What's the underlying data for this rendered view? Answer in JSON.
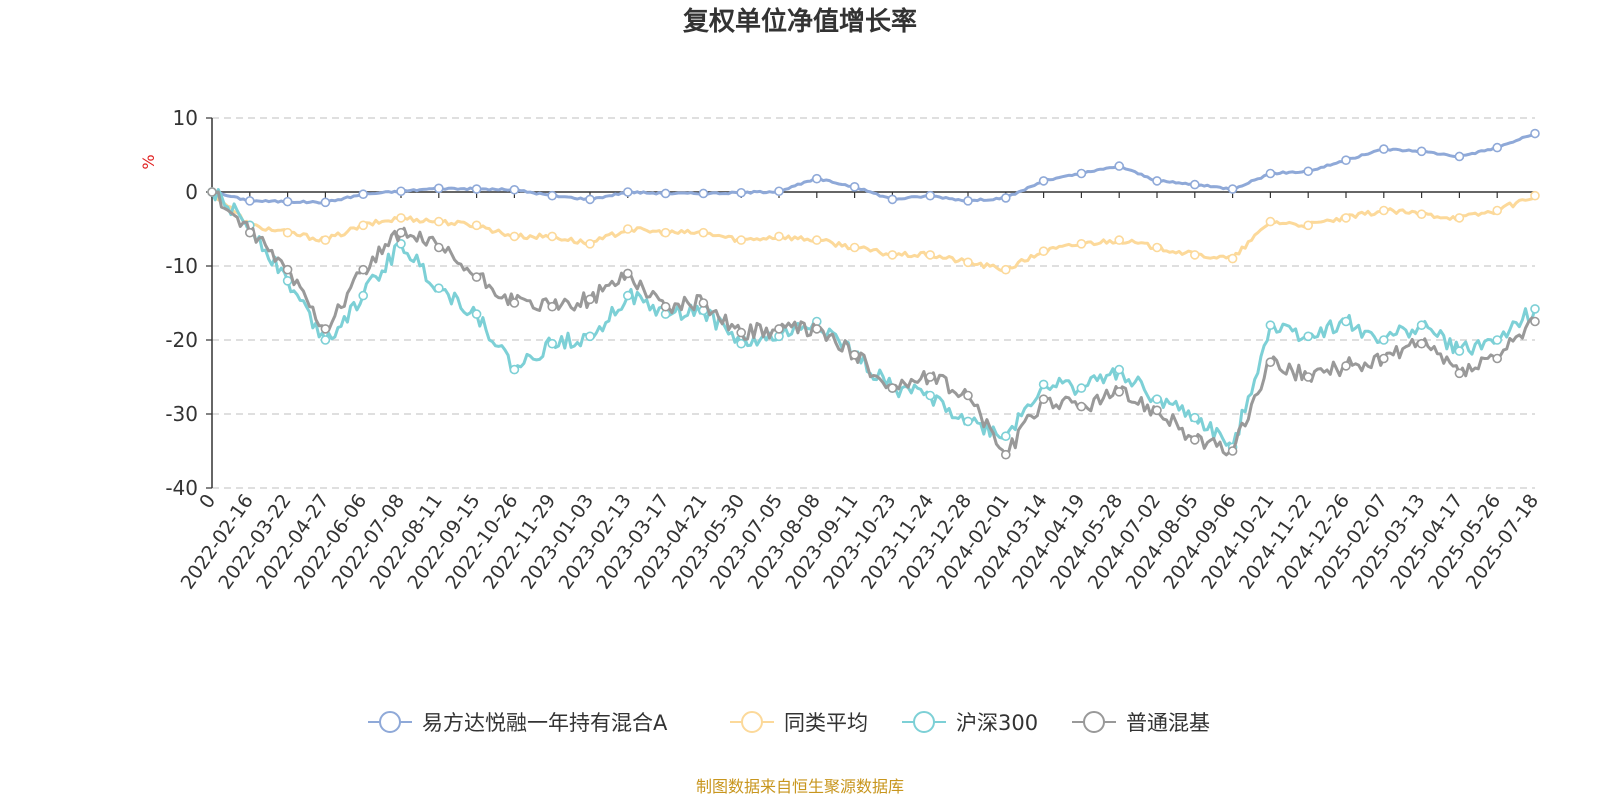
{
  "chart_data": {
    "type": "line",
    "title": "复权单位净值增长率",
    "ylabel": "%",
    "ylim": [
      -40,
      10
    ],
    "yticks": [
      10,
      0,
      -10,
      -20,
      -30,
      -40
    ],
    "grid": true,
    "legend_position": "bottom",
    "x_tick_labels": [
      "0",
      "2022-02-16",
      "2022-03-22",
      "2022-04-27",
      "2022-06-06",
      "2022-07-08",
      "2022-08-11",
      "2022-09-15",
      "2022-10-26",
      "2022-11-29",
      "2023-01-03",
      "2023-02-13",
      "2023-03-17",
      "2023-04-21",
      "2023-05-30",
      "2023-07-05",
      "2023-08-08",
      "2023-09-11",
      "2023-10-23",
      "2023-11-24",
      "2023-12-28",
      "2024-02-01",
      "2024-03-14",
      "2024-04-19",
      "2024-05-28",
      "2024-07-02",
      "2024-08-05",
      "2024-09-06",
      "2024-10-21",
      "2024-11-22",
      "2024-12-26",
      "2025-02-07",
      "2025-03-13",
      "2025-04-17",
      "2025-05-26",
      "2025-07-18"
    ],
    "series": [
      {
        "name": "易方达悦融一年持有混合A",
        "color": "#8fa9d8",
        "values": [
          0,
          -1.2,
          -1.3,
          -1.4,
          -0.3,
          0.1,
          0.5,
          0.4,
          0.3,
          -0.5,
          -1.0,
          0.0,
          -0.2,
          -0.2,
          -0.1,
          0.1,
          1.8,
          0.7,
          -1.0,
          -0.5,
          -1.2,
          -0.8,
          1.5,
          2.5,
          3.5,
          1.5,
          1.0,
          0.4,
          2.5,
          2.8,
          4.3,
          5.8,
          5.5,
          4.8,
          6.0,
          7.9
        ]
      },
      {
        "name": "同类平均",
        "color": "#fcd99a",
        "values": [
          0,
          -4.5,
          -5.5,
          -6.5,
          -4.5,
          -3.5,
          -4.0,
          -4.5,
          -6.0,
          -6.0,
          -7.0,
          -5.0,
          -5.5,
          -5.5,
          -6.5,
          -6.0,
          -6.5,
          -7.5,
          -8.5,
          -8.5,
          -9.5,
          -10.5,
          -8.0,
          -7.0,
          -6.5,
          -7.5,
          -8.5,
          -9.0,
          -4.0,
          -4.5,
          -3.5,
          -2.5,
          -3.0,
          -3.5,
          -2.5,
          -0.5
        ]
      },
      {
        "name": "沪深300",
        "color": "#7dd0d6",
        "values": [
          0,
          -4.5,
          -12.0,
          -20.0,
          -14.0,
          -7.0,
          -13.0,
          -16.5,
          -24.0,
          -20.5,
          -19.5,
          -14.0,
          -16.5,
          -16.0,
          -20.5,
          -19.5,
          -17.5,
          -22.0,
          -26.5,
          -27.5,
          -31.0,
          -33.0,
          -26.0,
          -26.5,
          -24.0,
          -28.0,
          -30.5,
          -34.5,
          -18.0,
          -19.5,
          -17.5,
          -20.0,
          -18.0,
          -21.5,
          -20.0,
          -15.8
        ]
      },
      {
        "name": "普通混基",
        "color": "#999999",
        "values": [
          0,
          -5.5,
          -10.5,
          -18.5,
          -10.5,
          -5.5,
          -7.5,
          -11.5,
          -15.0,
          -15.5,
          -14.5,
          -11.0,
          -15.5,
          -15.0,
          -19.0,
          -18.5,
          -18.5,
          -22.0,
          -26.5,
          -25.0,
          -27.5,
          -35.5,
          -28.0,
          -29.0,
          -27.0,
          -29.5,
          -33.5,
          -35.0,
          -23.0,
          -25.0,
          -23.5,
          -22.5,
          -20.5,
          -24.5,
          -22.5,
          -17.5
        ]
      }
    ]
  },
  "source_text": "制图数据来自恒生聚源数据库"
}
